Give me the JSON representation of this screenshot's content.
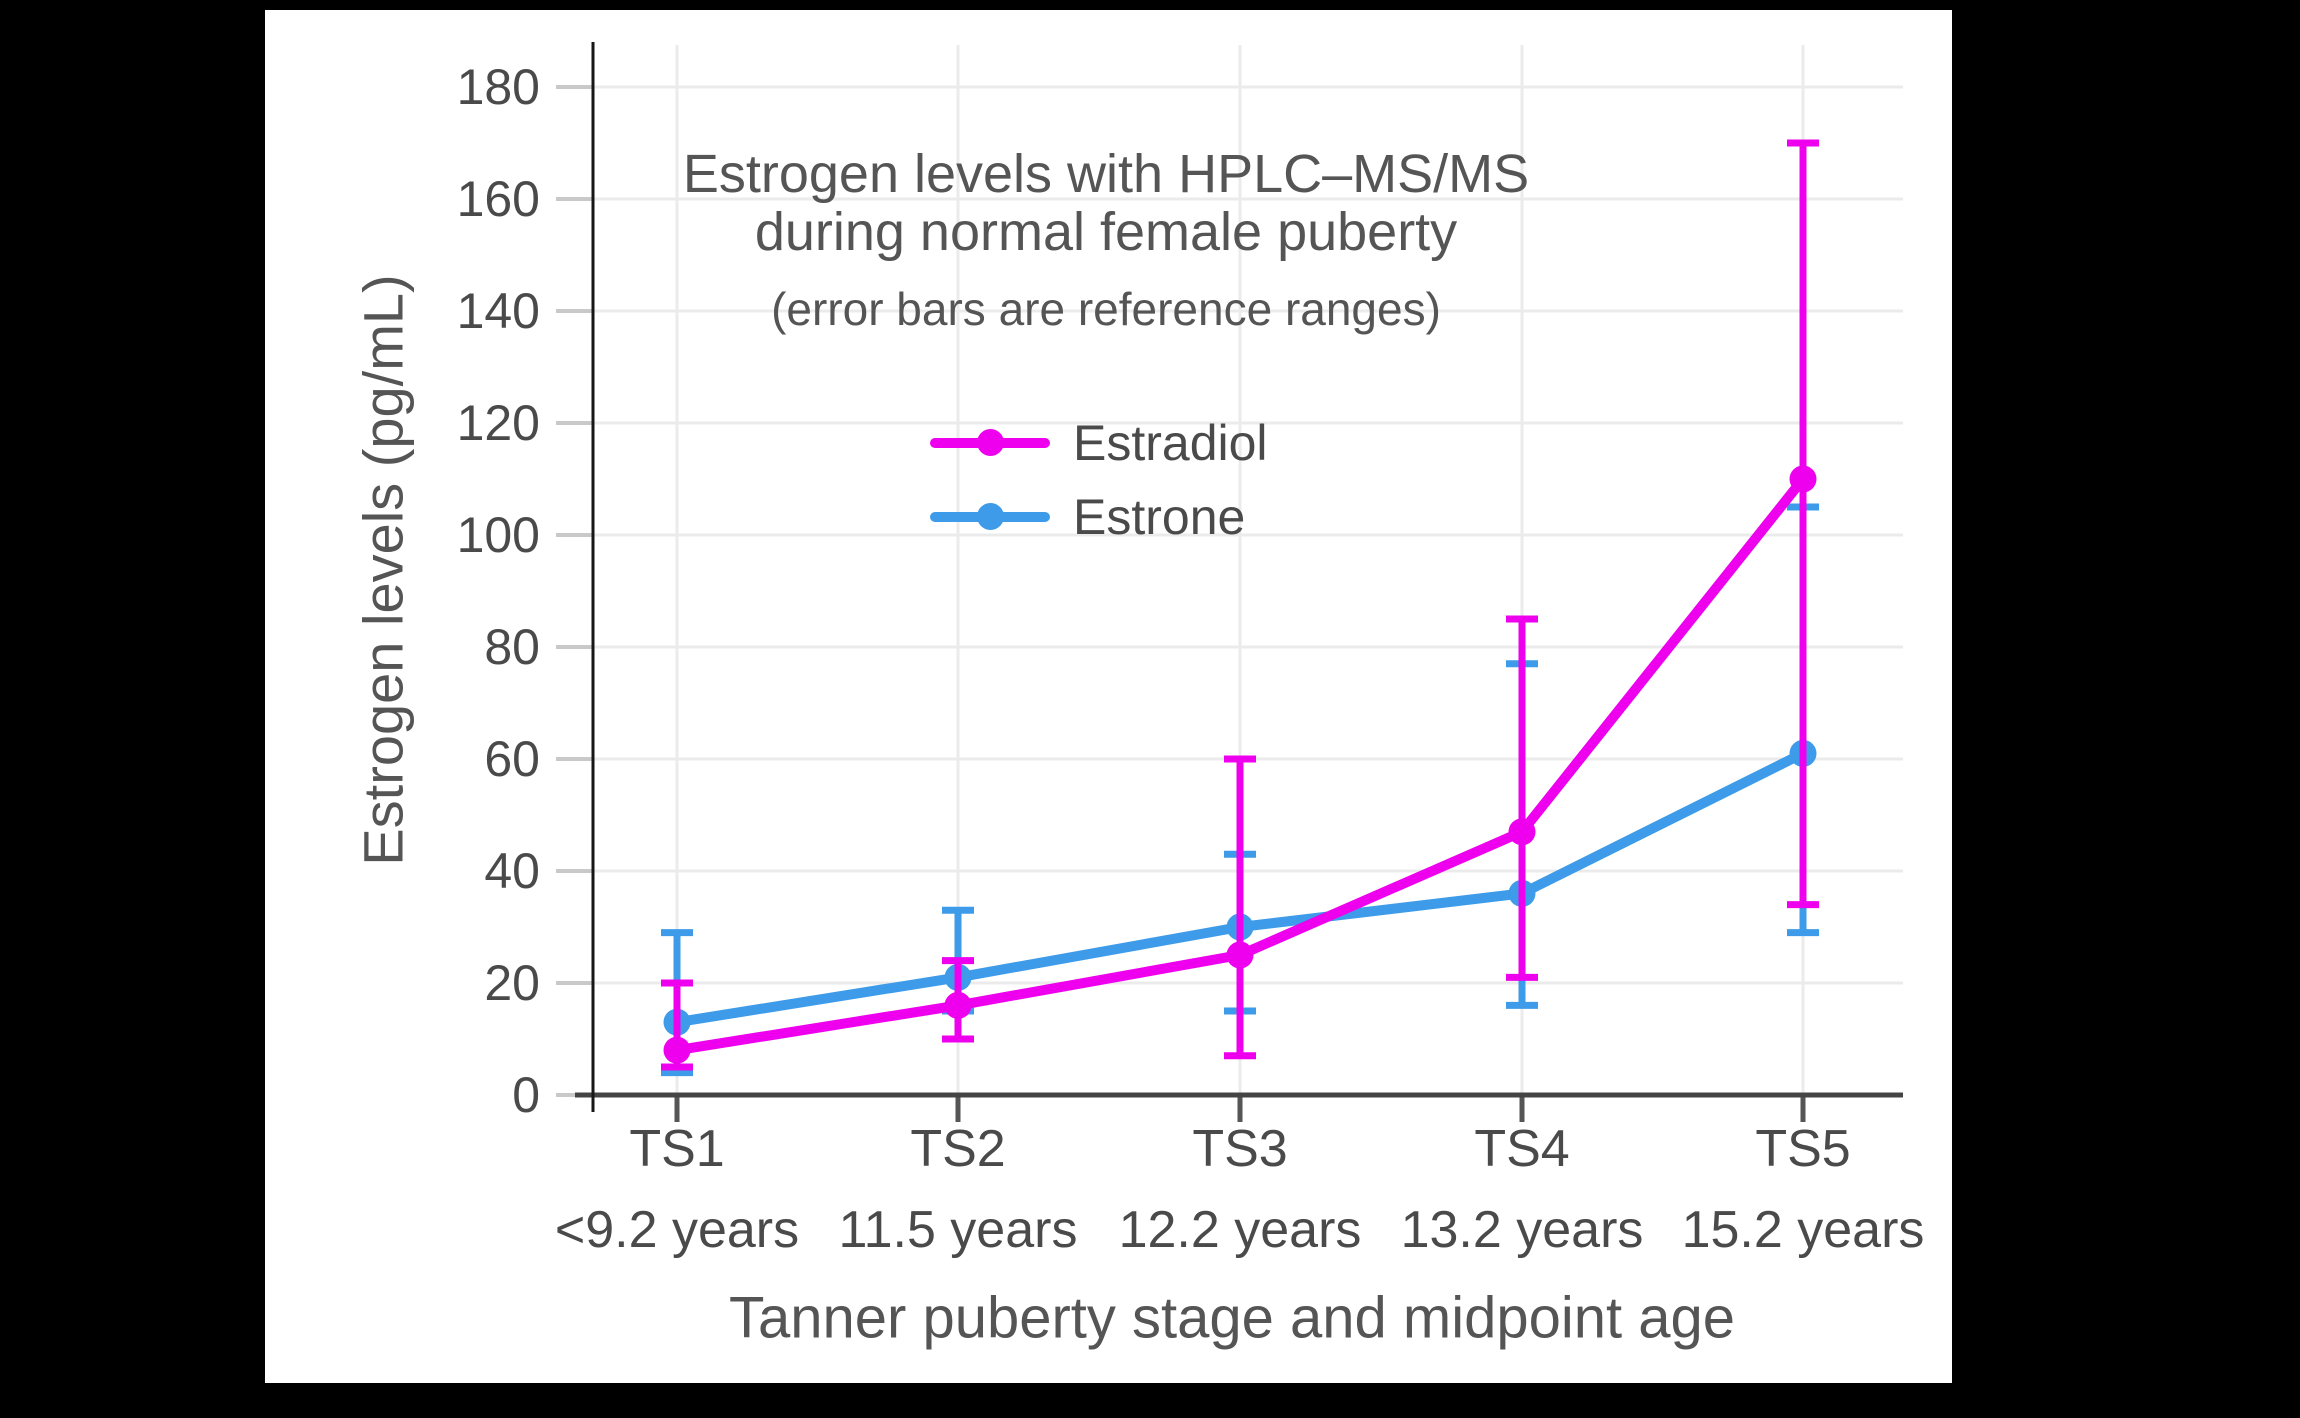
{
  "window": {
    "background": "#000000",
    "panel_background": "#ffffff"
  },
  "title": {
    "line1": "Estrogen levels with HPLC–MS/MS",
    "line2": "during normal female puberty",
    "subtitle": "(error bars are reference ranges)"
  },
  "axes": {
    "y_label": "Estrogen levels (pg/mL)",
    "x_label": "Tanner puberty stage and midpoint age",
    "y_ticks": [
      0,
      20,
      40,
      60,
      80,
      100,
      120,
      140,
      160,
      180
    ]
  },
  "legend": [
    {
      "label": "Estradiol",
      "color": "#EE00EE"
    },
    {
      "label": "Estrone",
      "color": "#3D9BE9"
    }
  ],
  "chart_data": {
    "type": "line",
    "title": "Estrogen levels with HPLC–MS/MS during normal female puberty",
    "subtitle": "(error bars are reference ranges)",
    "xlabel": "Tanner puberty stage and midpoint age",
    "ylabel": "Estrogen levels (pg/mL)",
    "categories": [
      "TS1",
      "TS2",
      "TS3",
      "TS4",
      "TS5"
    ],
    "category_sublabels": [
      "<9.2 years",
      "11.5 years",
      "12.2 years",
      "13.2 years",
      "15.2 years"
    ],
    "ylim": [
      0,
      187
    ],
    "yticks": [
      0,
      20,
      40,
      60,
      80,
      100,
      120,
      140,
      160,
      180
    ],
    "grid": true,
    "error_bars_meaning": "reference ranges",
    "legend_position": "inside top-center",
    "series": [
      {
        "name": "Estrone",
        "color": "#3D9BE9",
        "values": [
          13,
          21,
          30,
          36,
          61
        ],
        "range_low": [
          4,
          15,
          15,
          16,
          29
        ],
        "range_high": [
          29,
          33,
          43,
          77,
          105
        ]
      },
      {
        "name": "Estradiol",
        "color": "#EE00EE",
        "values": [
          8,
          16,
          25,
          47,
          110
        ],
        "range_low": [
          5,
          10,
          7,
          21,
          34
        ],
        "range_high": [
          20,
          24,
          60,
          85,
          170
        ]
      }
    ]
  }
}
